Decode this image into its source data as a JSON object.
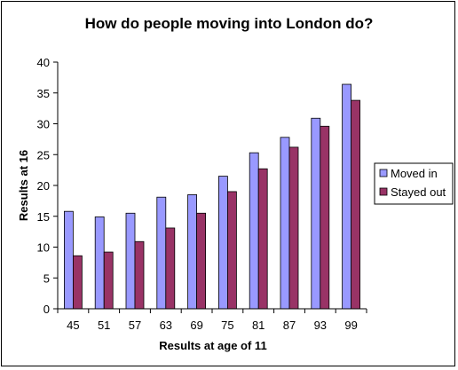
{
  "chart_data": {
    "type": "bar",
    "title": "How do people moving into London do?",
    "xlabel": "Results at age of 11",
    "ylabel": "Results at 16",
    "categories": [
      "45",
      "51",
      "57",
      "63",
      "69",
      "75",
      "81",
      "87",
      "93",
      "99"
    ],
    "series": [
      {
        "name": "Moved in",
        "color": "#9999FF",
        "values": [
          15.8,
          14.9,
          15.5,
          18.1,
          18.5,
          21.5,
          25.3,
          27.8,
          30.9,
          36.4
        ]
      },
      {
        "name": "Stayed out",
        "color": "#993366",
        "values": [
          8.6,
          9.2,
          10.9,
          13.1,
          15.5,
          19.0,
          22.7,
          26.2,
          29.6,
          33.8
        ]
      }
    ],
    "ylim": [
      0,
      40
    ],
    "yticks": [
      "0",
      "5",
      "10",
      "15",
      "20",
      "25",
      "30",
      "35",
      "40"
    ],
    "grid": false,
    "legend_position": "right"
  }
}
